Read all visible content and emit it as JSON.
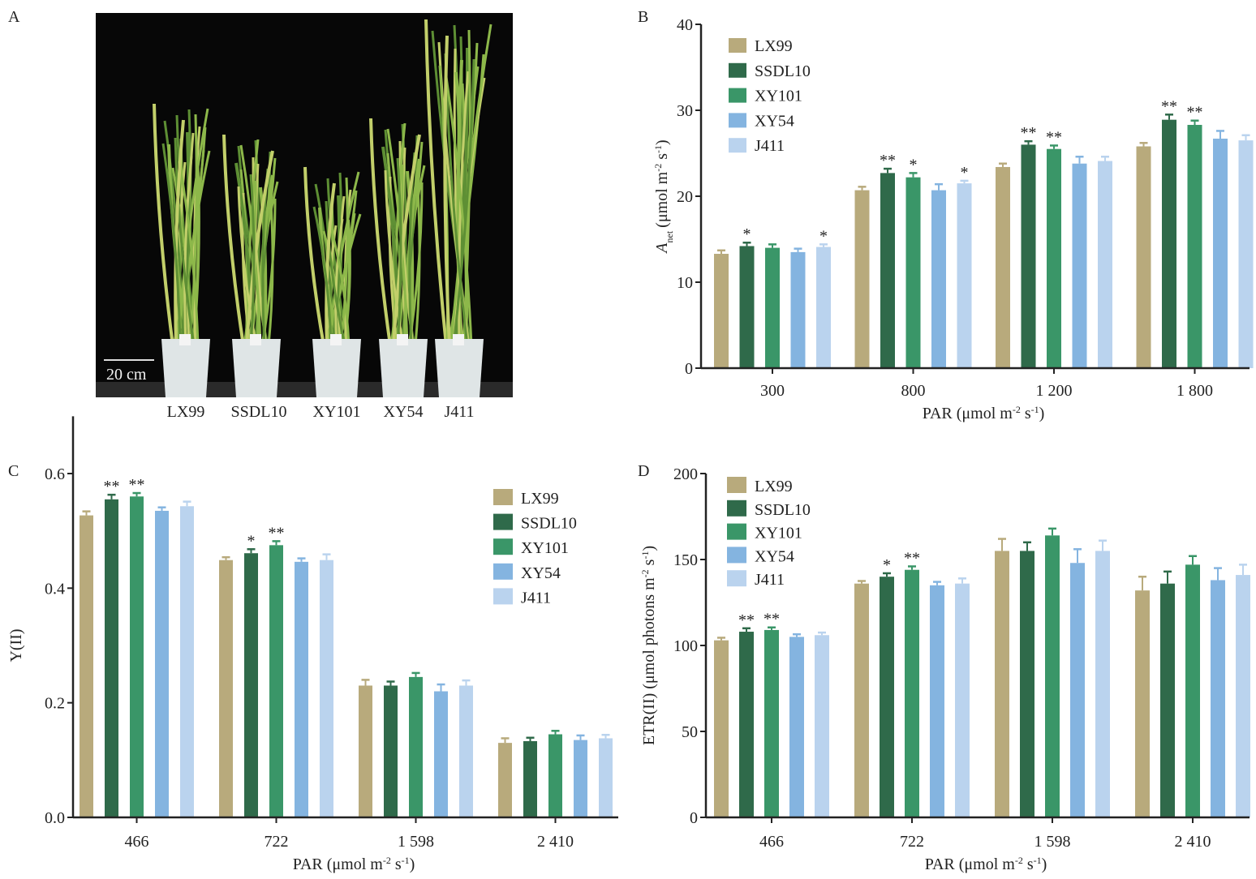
{
  "panels": {
    "A": {
      "letter": "A",
      "scale_bar_label": "20 cm",
      "plant_labels": [
        "LX99",
        "SSDL10",
        "XY101",
        "XY54",
        "J411"
      ]
    },
    "B": {
      "letter": "B"
    },
    "C": {
      "letter": "C"
    },
    "D": {
      "letter": "D"
    }
  },
  "legend": [
    {
      "name": "LX99",
      "color": "#b8aa7c"
    },
    {
      "name": "SSDL10",
      "color": "#2f6a4a"
    },
    {
      "name": "XY101",
      "color": "#3a9668"
    },
    {
      "name": "XY54",
      "color": "#84b4e0"
    },
    {
      "name": "J411",
      "color": "#bad3ee"
    }
  ],
  "chart_data": [
    {
      "panel": "B",
      "type": "bar",
      "title": "",
      "xlabel": "PAR (μmol m-2 s-1)",
      "ylabel": "Anet (μmol m-2 s-1)",
      "ylim": [
        0,
        40
      ],
      "yticks": [
        0,
        10,
        20,
        30,
        40
      ],
      "ytick_labels": [
        "0",
        "10",
        "20",
        "30",
        "40"
      ],
      "categories": [
        "300",
        "800",
        "1 200",
        "1 800"
      ],
      "legend_position": "top-left",
      "series": [
        {
          "name": "LX99",
          "values": [
            13.3,
            20.7,
            23.4,
            25.8
          ],
          "errors": [
            0.4,
            0.4,
            0.4,
            0.4
          ],
          "sig": [
            "",
            "",
            "",
            ""
          ]
        },
        {
          "name": "SSDL10",
          "values": [
            14.2,
            22.7,
            26.0,
            28.9
          ],
          "errors": [
            0.4,
            0.5,
            0.4,
            0.6
          ],
          "sig": [
            "*",
            "**",
            "**",
            "**"
          ]
        },
        {
          "name": "XY101",
          "values": [
            14.0,
            22.2,
            25.5,
            28.3
          ],
          "errors": [
            0.4,
            0.5,
            0.4,
            0.5
          ],
          "sig": [
            "",
            "*",
            "**",
            "**"
          ]
        },
        {
          "name": "XY54",
          "values": [
            13.5,
            20.7,
            23.8,
            26.7
          ],
          "errors": [
            0.4,
            0.7,
            0.8,
            0.9
          ],
          "sig": [
            "",
            "",
            "",
            ""
          ]
        },
        {
          "name": "J411",
          "values": [
            14.1,
            21.5,
            24.1,
            26.5
          ],
          "errors": [
            0.3,
            0.3,
            0.5,
            0.6
          ],
          "sig": [
            "*",
            "*",
            "",
            ""
          ]
        }
      ]
    },
    {
      "panel": "C",
      "type": "bar",
      "title": "",
      "xlabel": "PAR (μmol m-2 s-1)",
      "ylabel": "Y(II)",
      "ylim": [
        0,
        0.7
      ],
      "yticks": [
        0,
        0.2,
        0.4,
        0.6
      ],
      "ytick_labels": [
        "0.0",
        "0.2",
        "0.4",
        "0.6"
      ],
      "categories": [
        "466",
        "722",
        "1 598",
        "2 410"
      ],
      "legend_position": "top-right",
      "series": [
        {
          "name": "LX99",
          "values": [
            0.527,
            0.449,
            0.23,
            0.13
          ],
          "errors": [
            0.007,
            0.005,
            0.01,
            0.008
          ],
          "sig": [
            "",
            "",
            "",
            ""
          ]
        },
        {
          "name": "SSDL10",
          "values": [
            0.555,
            0.461,
            0.23,
            0.133
          ],
          "errors": [
            0.008,
            0.007,
            0.007,
            0.006
          ],
          "sig": [
            "**",
            "*",
            "",
            ""
          ]
        },
        {
          "name": "XY101",
          "values": [
            0.56,
            0.475,
            0.245,
            0.145
          ],
          "errors": [
            0.006,
            0.007,
            0.007,
            0.006
          ],
          "sig": [
            "**",
            "**",
            "",
            ""
          ]
        },
        {
          "name": "XY54",
          "values": [
            0.535,
            0.446,
            0.22,
            0.135
          ],
          "errors": [
            0.006,
            0.006,
            0.012,
            0.008
          ],
          "sig": [
            "",
            "",
            "",
            ""
          ]
        },
        {
          "name": "J411",
          "values": [
            0.543,
            0.449,
            0.23,
            0.138
          ],
          "errors": [
            0.008,
            0.01,
            0.009,
            0.006
          ],
          "sig": [
            "",
            "",
            "",
            ""
          ]
        }
      ]
    },
    {
      "panel": "D",
      "type": "bar",
      "title": "",
      "xlabel": "PAR (μmol m-2 s-1)",
      "ylabel": "ETR(II) (μmol photons m-2 s-1)",
      "ylim": [
        0,
        200
      ],
      "yticks": [
        0,
        50,
        100,
        150,
        200
      ],
      "ytick_labels": [
        "0",
        "50",
        "100",
        "150",
        "200"
      ],
      "categories": [
        "466",
        "722",
        "1 598",
        "2 410"
      ],
      "legend_position": "top-left",
      "series": [
        {
          "name": "LX99",
          "values": [
            103,
            136,
            155,
            132
          ],
          "errors": [
            1.5,
            1.5,
            7,
            8
          ],
          "sig": [
            "",
            "",
            "",
            ""
          ]
        },
        {
          "name": "SSDL10",
          "values": [
            108,
            140,
            155,
            136
          ],
          "errors": [
            2,
            2,
            5,
            7
          ],
          "sig": [
            "**",
            "*",
            "",
            ""
          ]
        },
        {
          "name": "XY101",
          "values": [
            109,
            144,
            164,
            147
          ],
          "errors": [
            1.5,
            2,
            4,
            5
          ],
          "sig": [
            "**",
            "**",
            "",
            ""
          ]
        },
        {
          "name": "XY54",
          "values": [
            105,
            135,
            148,
            138
          ],
          "errors": [
            1.5,
            2,
            8,
            7
          ],
          "sig": [
            "",
            "",
            "",
            ""
          ]
        },
        {
          "name": "J411",
          "values": [
            106,
            136,
            155,
            141
          ],
          "errors": [
            1.5,
            3,
            6,
            6
          ],
          "sig": [
            "",
            "",
            "",
            ""
          ]
        }
      ]
    }
  ]
}
